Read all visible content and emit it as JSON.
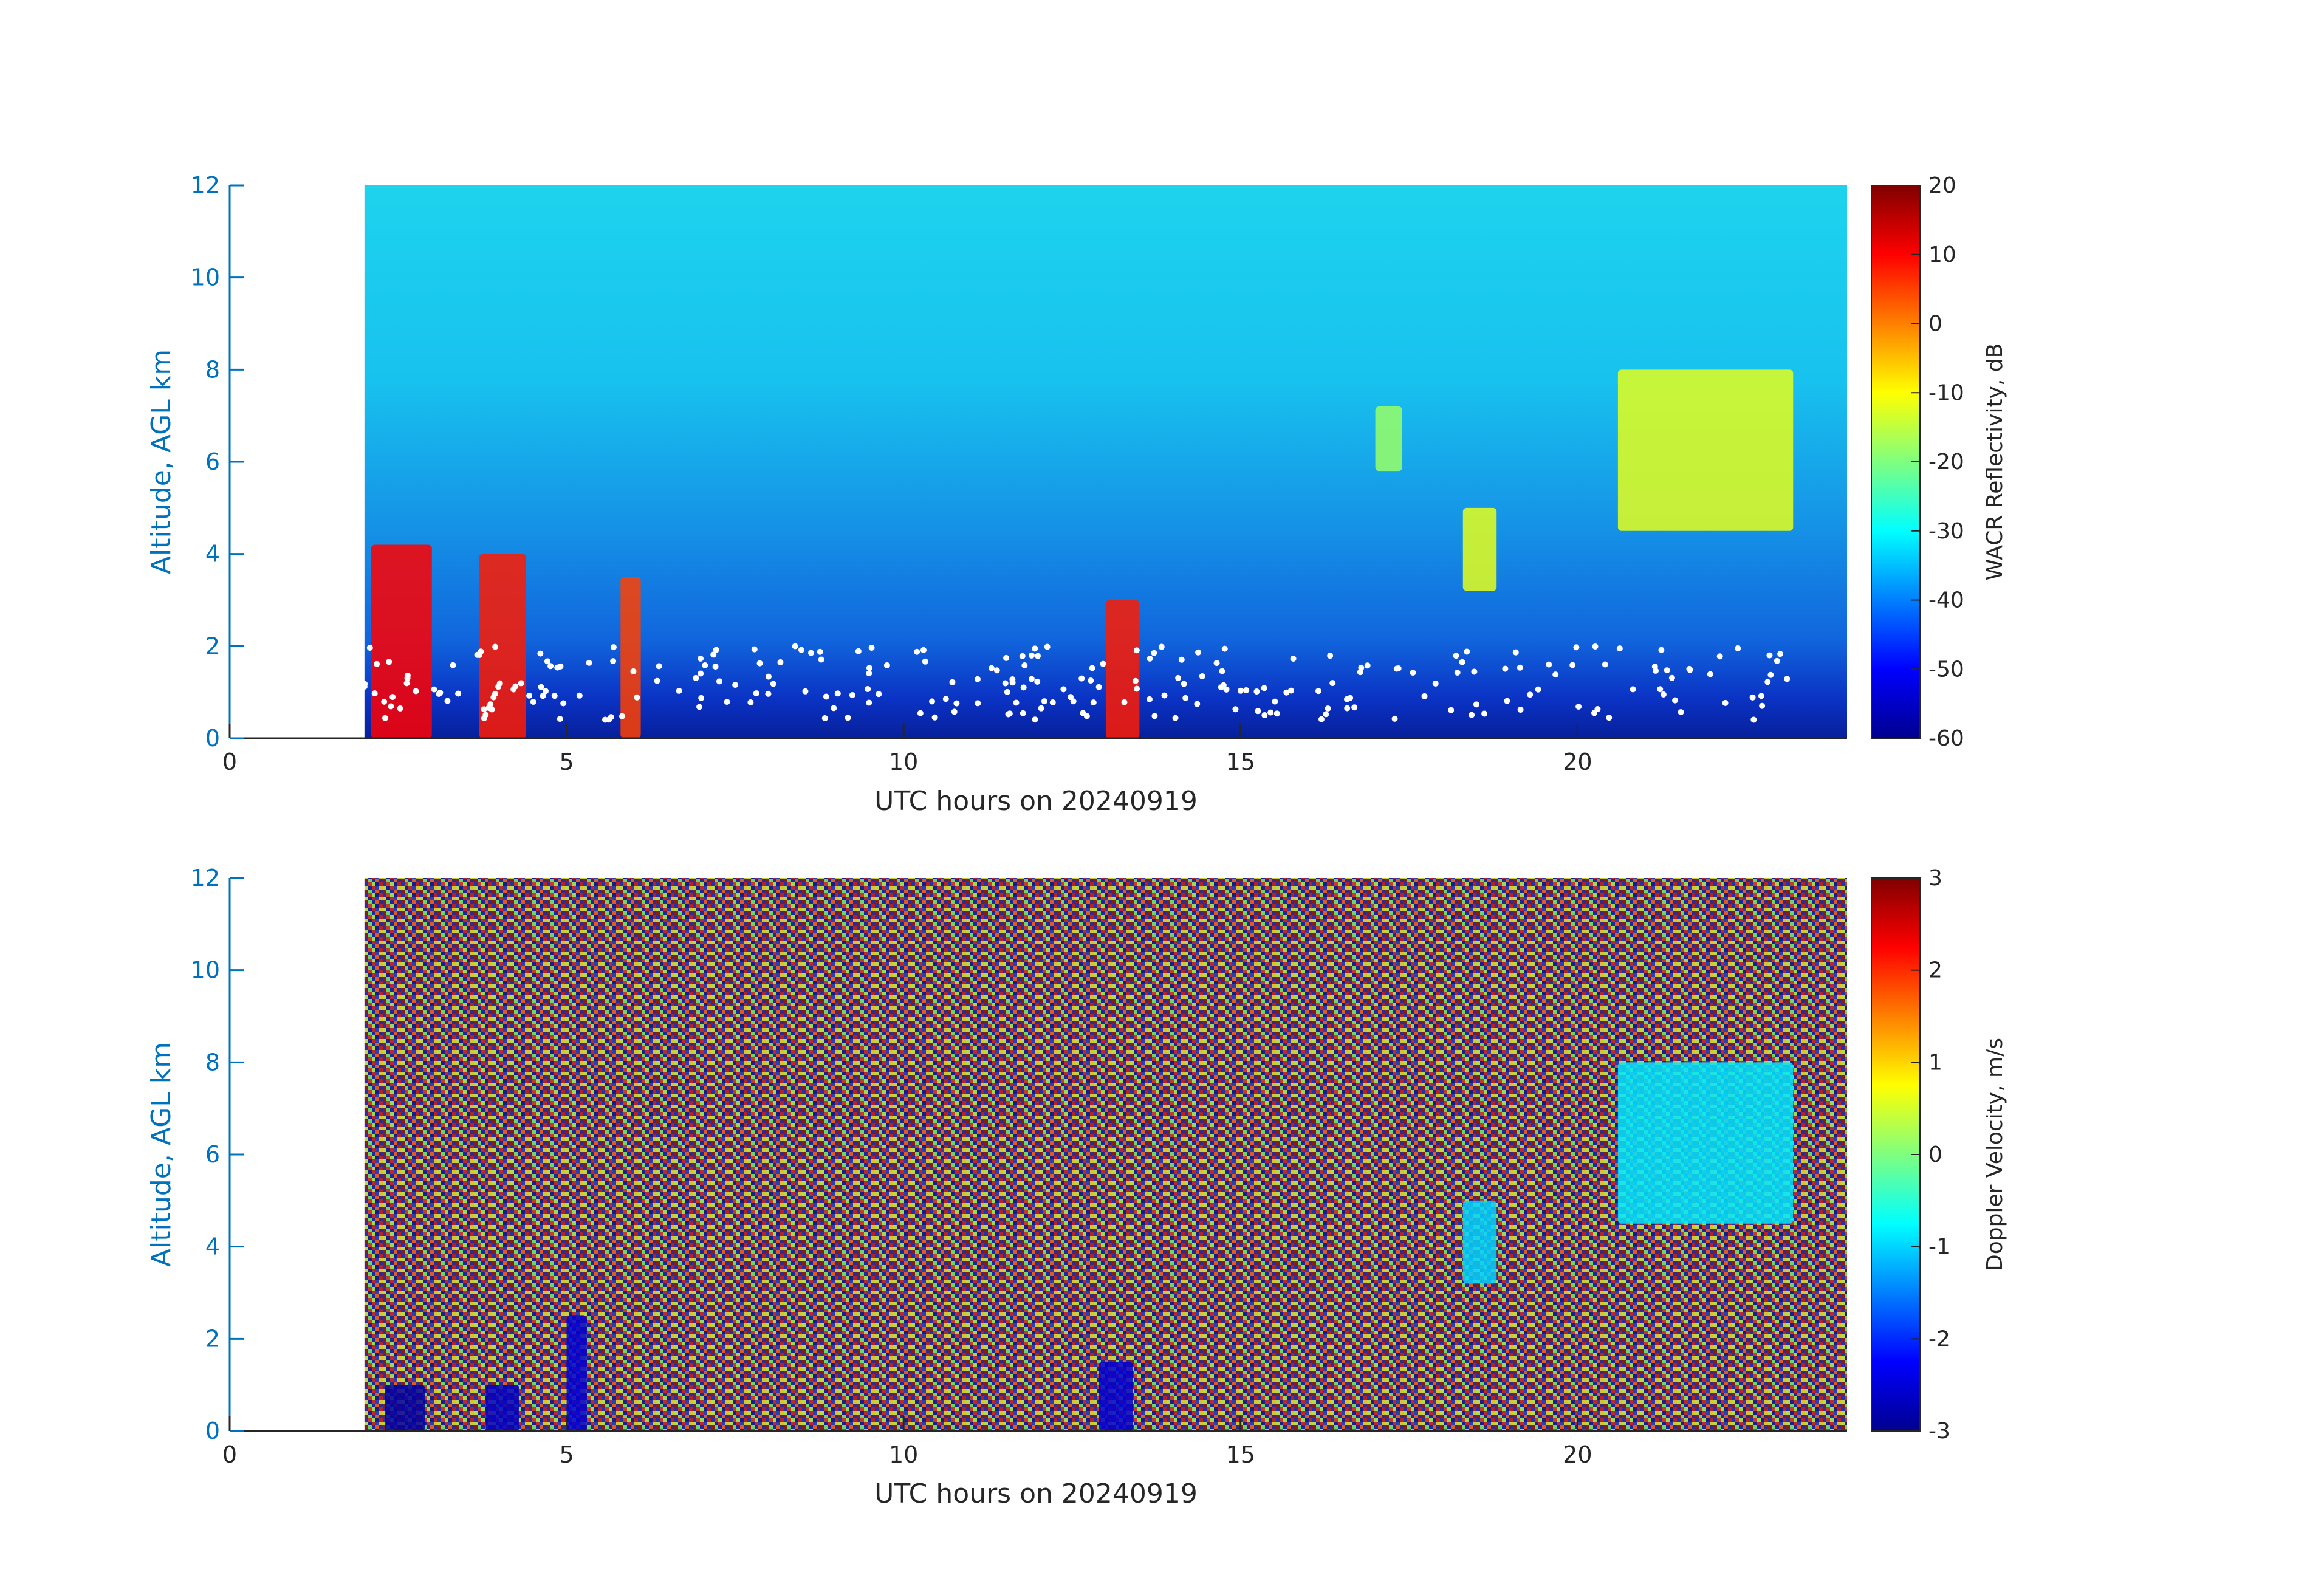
{
  "chart_data": [
    {
      "type": "heatmap",
      "title": "",
      "xlabel": "UTC hours on 20240919",
      "ylabel": "Altitude, AGL km",
      "xlim": [
        0,
        24
      ],
      "ylim": [
        0,
        12
      ],
      "x_ticks": [
        0,
        5,
        10,
        15,
        20
      ],
      "x_tick_labels": [
        "0",
        "5",
        "10",
        "15",
        "20"
      ],
      "y_ticks": [
        0,
        2,
        4,
        6,
        8,
        10,
        12
      ],
      "y_tick_labels": [
        "0",
        "2",
        "4",
        "6",
        "8",
        "10",
        "12"
      ],
      "data_start_hour": 2,
      "data_end_hour": 24,
      "colorbar": {
        "label": "WACR Reflectivity, dB",
        "colormap": "jet",
        "clim": [
          -60,
          20
        ],
        "ticks": [
          20,
          10,
          0,
          -10,
          -20,
          -30,
          -40,
          -50,
          -60
        ],
        "tick_labels": [
          "20",
          "10",
          "0",
          "-10",
          "-20",
          "-30",
          "-40",
          "-50",
          "-60"
        ]
      },
      "cloud_base_markers": "white dots",
      "features": [
        {
          "hour_range": [
            2.1,
            3.0
          ],
          "alt_km": [
            0.0,
            4.2
          ],
          "value_dB": 10
        },
        {
          "hour_range": [
            3.7,
            4.4
          ],
          "alt_km": [
            0.0,
            4.0
          ],
          "value_dB": 8
        },
        {
          "hour_range": [
            5.8,
            6.1
          ],
          "alt_km": [
            0.0,
            3.5
          ],
          "value_dB": 5
        },
        {
          "hour_range": [
            13.0,
            13.5
          ],
          "alt_km": [
            0.0,
            3.0
          ],
          "value_dB": 8
        },
        {
          "hour_range": [
            18.3,
            18.8
          ],
          "alt_km": [
            3.2,
            5.0
          ],
          "value_dB": -12
        },
        {
          "hour_range": [
            17.0,
            17.4
          ],
          "alt_km": [
            5.8,
            7.2
          ],
          "value_dB": -18
        },
        {
          "hour_range": [
            20.6,
            23.2
          ],
          "alt_km": [
            4.5,
            8.0
          ],
          "value_dB": -12
        }
      ]
    },
    {
      "type": "heatmap",
      "title": "",
      "xlabel": "UTC hours on 20240919",
      "ylabel": "Altitude, AGL km",
      "xlim": [
        0,
        24
      ],
      "ylim": [
        0,
        12
      ],
      "x_ticks": [
        0,
        5,
        10,
        15,
        20
      ],
      "x_tick_labels": [
        "0",
        "5",
        "10",
        "15",
        "20"
      ],
      "y_ticks": [
        0,
        2,
        4,
        6,
        8,
        10,
        12
      ],
      "y_tick_labels": [
        "0",
        "2",
        "4",
        "6",
        "8",
        "10",
        "12"
      ],
      "data_start_hour": 2,
      "data_end_hour": 24,
      "colorbar": {
        "label": "Doppler Velocity, m/s",
        "colormap": "jet",
        "clim": [
          -3,
          3
        ],
        "ticks": [
          3,
          2,
          1,
          0,
          -1,
          -2,
          -3
        ],
        "tick_labels": [
          "3",
          "2",
          "1",
          "0",
          "-1",
          "-2",
          "-3"
        ]
      },
      "features": [
        {
          "hour_range": [
            2.3,
            2.9
          ],
          "alt_km": [
            0.0,
            1.0
          ],
          "value_ms": -2.8
        },
        {
          "hour_range": [
            3.8,
            4.3
          ],
          "alt_km": [
            0.0,
            1.0
          ],
          "value_ms": -2.6
        },
        {
          "hour_range": [
            5.0,
            5.3
          ],
          "alt_km": [
            0.0,
            2.5
          ],
          "value_ms": -2.5
        },
        {
          "hour_range": [
            12.9,
            13.4
          ],
          "alt_km": [
            0.0,
            1.5
          ],
          "value_ms": -2.5
        },
        {
          "hour_range": [
            18.3,
            18.8
          ],
          "alt_km": [
            3.2,
            5.0
          ],
          "value_ms": -1.0
        },
        {
          "hour_range": [
            20.6,
            23.2
          ],
          "alt_km": [
            4.5,
            8.0
          ],
          "value_ms": -0.9
        }
      ]
    }
  ]
}
